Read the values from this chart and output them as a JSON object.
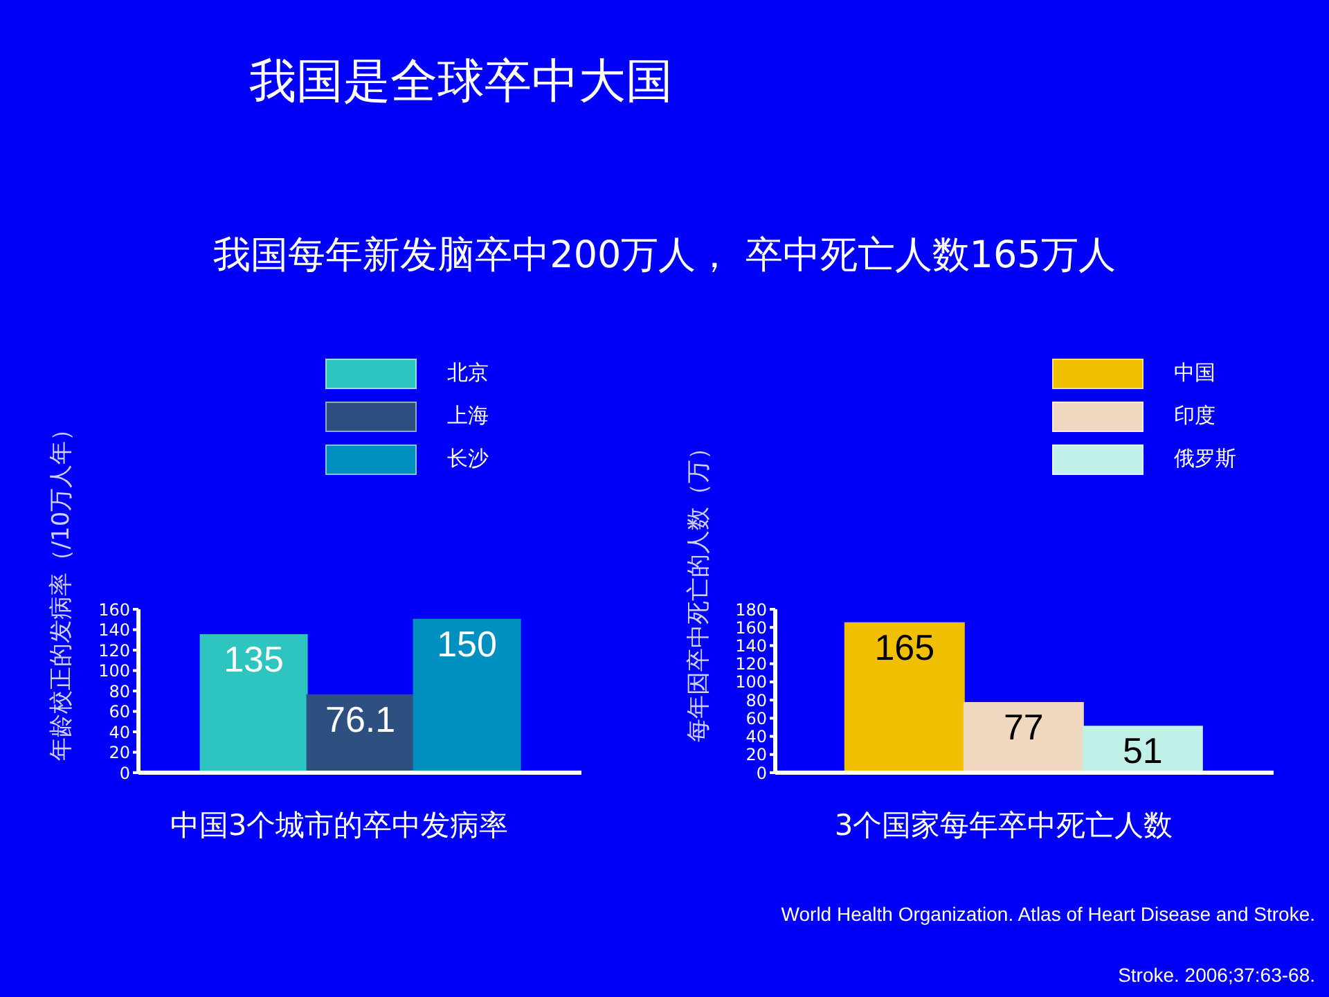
{
  "chart_data": [
    {
      "type": "bar",
      "title": "我国是全球卒中大国",
      "subtitle": "我国每年新发脑卒中200万人， 卒中死亡人数165万人",
      "xlabel": "中国3个城市的卒中发病率",
      "ylabel": "年龄校正的发病率（/10万人年）",
      "categories": [
        null
      ],
      "ylim": [
        0,
        160
      ],
      "yticks": [
        0,
        20,
        40,
        60,
        80,
        100,
        120,
        140,
        160
      ],
      "grid": false,
      "legend": "top",
      "data_labels": true,
      "series": [
        {
          "name": "北京",
          "color": "#2ec4c0",
          "values": [
            135
          ]
        },
        {
          "name": "上海",
          "color": "#2d5080",
          "values": [
            76.1
          ]
        },
        {
          "name": "长沙",
          "color": "#0090c0",
          "values": [
            150
          ]
        }
      ]
    },
    {
      "type": "bar",
      "xlabel": "3个国家每年卒中死亡人数",
      "ylabel": "每年因卒中死亡的人数（万）",
      "categories": [
        null
      ],
      "ylim": [
        0,
        180
      ],
      "yticks": [
        0,
        20,
        40,
        60,
        80,
        100,
        120,
        140,
        160,
        180
      ],
      "grid": false,
      "legend": "top",
      "data_labels": true,
      "annotations": [
        "World Health Organization. Atlas of Heart Disease and Stroke.",
        "Stroke. 2006;37:63-68."
      ],
      "series": [
        {
          "name": "中国",
          "color": "#f0c000",
          "values": [
            165
          ]
        },
        {
          "name": "印度",
          "color": "#f0d8c0",
          "values": [
            77
          ]
        },
        {
          "name": "俄罗斯",
          "color": "#c0f0e8",
          "values": [
            51
          ]
        }
      ]
    }
  ]
}
